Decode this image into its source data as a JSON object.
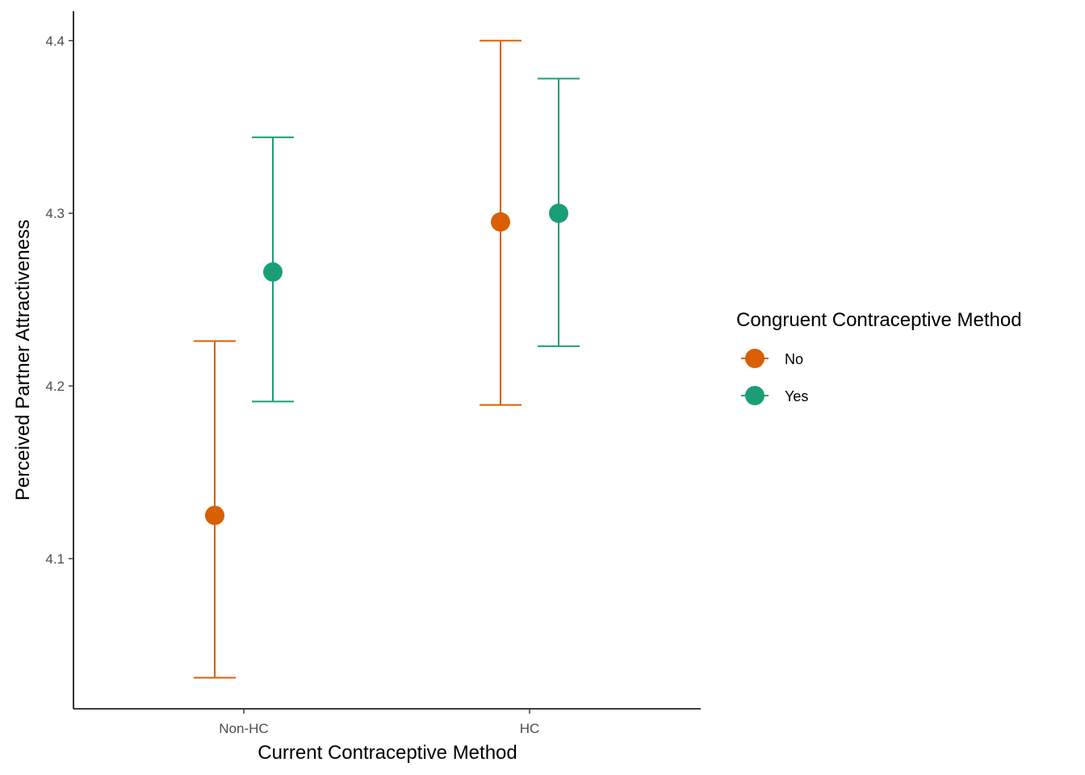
{
  "chart_data": {
    "type": "scatter",
    "subtype": "point-range",
    "categories": [
      "Non-HC",
      "HC"
    ],
    "series": [
      {
        "name": "No",
        "color": "#d95f02",
        "values": [
          4.125,
          4.295
        ],
        "lower": [
          4.031,
          4.189
        ],
        "upper": [
          4.226,
          4.4
        ]
      },
      {
        "name": "Yes",
        "color": "#1b9e77",
        "values": [
          4.266,
          4.3
        ],
        "lower": [
          4.191,
          4.223
        ],
        "upper": [
          4.344,
          4.378
        ]
      }
    ],
    "xlabel": "Current Contraceptive Method",
    "ylabel": "Perceived Partner Attractiveness",
    "ylim": [
      4.013,
      4.417
    ],
    "yticks": [
      "4.1",
      "4.2",
      "4.3",
      "4.4"
    ],
    "legend": {
      "title": "Congruent Contraceptive Method",
      "position": "right"
    },
    "grid": false
  }
}
